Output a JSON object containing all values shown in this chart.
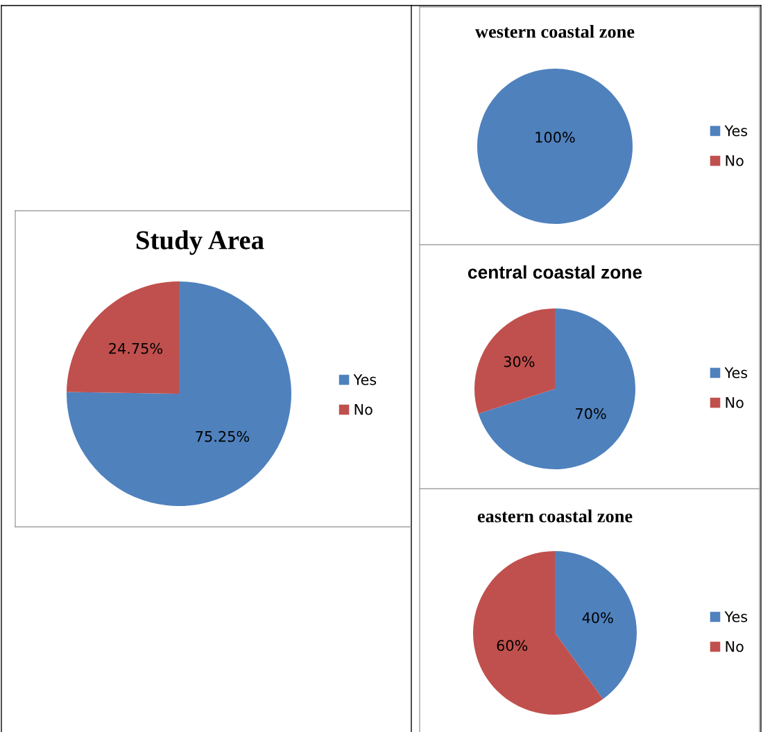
{
  "chart_data": [
    {
      "type": "pie",
      "title": "Study Area",
      "categories": [
        "Yes",
        "No"
      ],
      "values": [
        75.25,
        24.75
      ],
      "colors": [
        "#4f81bd",
        "#c0504d"
      ],
      "value_labels": [
        "75.25%",
        "24.75%"
      ],
      "legend": "right"
    },
    {
      "type": "pie",
      "title": "western coastal zone",
      "categories": [
        "Yes",
        "No"
      ],
      "values": [
        100,
        0
      ],
      "colors": [
        "#4f81bd",
        "#c0504d"
      ],
      "value_labels": [
        "100%",
        null
      ],
      "legend": "right"
    },
    {
      "type": "pie",
      "title": "central coastal zone",
      "categories": [
        "Yes",
        "No"
      ],
      "values": [
        70,
        30
      ],
      "colors": [
        "#4f81bd",
        "#c0504d"
      ],
      "value_labels": [
        "70%",
        "30%"
      ],
      "legend": "right"
    },
    {
      "type": "pie",
      "title": "eastern coastal zone",
      "categories": [
        "Yes",
        "No"
      ],
      "values": [
        40,
        60
      ],
      "colors": [
        "#4f81bd",
        "#c0504d"
      ],
      "value_labels": [
        "40%",
        "60%"
      ],
      "legend": "right"
    }
  ]
}
